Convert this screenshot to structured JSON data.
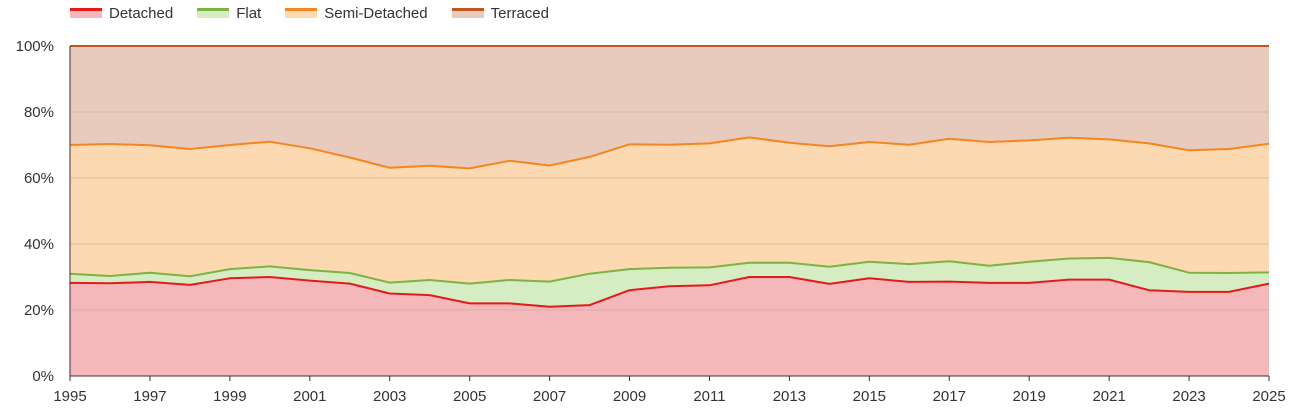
{
  "chart_data": {
    "type": "area",
    "stacked": true,
    "normalized": true,
    "x": [
      1995,
      1996,
      1997,
      1998,
      1999,
      2000,
      2001,
      2002,
      2003,
      2004,
      2005,
      2006,
      2007,
      2008,
      2009,
      2010,
      2011,
      2012,
      2013,
      2014,
      2015,
      2016,
      2017,
      2018,
      2019,
      2020,
      2021,
      2022,
      2023,
      2024,
      2025
    ],
    "x_tick_labels": [
      "1995",
      "1997",
      "1999",
      "2001",
      "2003",
      "2005",
      "2007",
      "2009",
      "2011",
      "2013",
      "2015",
      "2017",
      "2019",
      "2021",
      "2023",
      "2025"
    ],
    "y_tick_labels": [
      "0%",
      "20%",
      "40%",
      "60%",
      "80%",
      "100%"
    ],
    "ylim": [
      0,
      100
    ],
    "y_unit": "%",
    "grid": true,
    "legend_position": "top-left",
    "xlabel": "",
    "ylabel": "",
    "title": "",
    "series": [
      {
        "name": "Detached",
        "color": "#e31a1c",
        "fill": "#f4b8bb",
        "values": [
          28.2,
          28.1,
          28.5,
          27.6,
          29.6,
          30.0,
          28.9,
          28.0,
          25.0,
          24.5,
          22.0,
          22.0,
          21.0,
          21.5,
          26.0,
          27.2,
          27.5,
          30.0,
          30.0,
          27.9,
          29.6,
          28.5,
          28.6,
          28.2,
          28.2,
          29.2,
          29.2,
          26.0,
          25.5,
          25.5,
          28.0
        ]
      },
      {
        "name": "Flat",
        "color": "#7cb342",
        "fill": "#d6ecc3",
        "values": [
          2.8,
          2.2,
          2.8,
          2.6,
          2.8,
          3.2,
          3.2,
          3.2,
          3.3,
          4.6,
          6.0,
          7.1,
          7.6,
          9.5,
          6.4,
          5.6,
          5.4,
          4.3,
          4.3,
          5.2,
          5.0,
          5.4,
          6.2,
          5.2,
          6.4,
          6.4,
          6.6,
          8.5,
          5.8,
          5.7,
          3.4
        ]
      },
      {
        "name": "Semi-Detached",
        "color": "#f5861f",
        "fill": "#fdd9b1",
        "values": [
          39.0,
          40.0,
          38.6,
          38.6,
          37.6,
          37.8,
          36.9,
          35.0,
          34.8,
          34.6,
          34.9,
          36.1,
          35.2,
          35.4,
          37.8,
          37.3,
          37.6,
          38.0,
          36.4,
          36.5,
          36.3,
          36.2,
          37.1,
          37.5,
          36.8,
          36.6,
          35.9,
          36.0,
          37.1,
          37.6,
          39.0
        ]
      },
      {
        "name": "Terraced",
        "color": "#c1561f",
        "fill": "#e8cbbd",
        "values": [
          30.0,
          29.7,
          30.1,
          31.2,
          30.0,
          29.0,
          31.0,
          33.8,
          36.9,
          36.3,
          37.1,
          34.8,
          36.2,
          33.6,
          29.8,
          29.9,
          29.5,
          27.7,
          29.3,
          30.4,
          29.1,
          29.9,
          28.1,
          29.1,
          28.6,
          27.8,
          28.3,
          29.5,
          31.6,
          31.2,
          29.6
        ]
      }
    ]
  }
}
